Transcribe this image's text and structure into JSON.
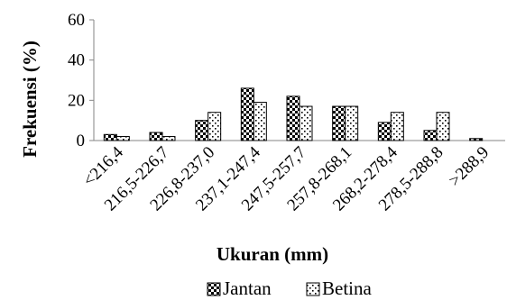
{
  "chart_data": {
    "type": "bar",
    "categories": [
      "<216,4",
      "216,5-226,7",
      "226,8-237,0",
      "237,1-247,4",
      "247,5-257,7",
      "257,8-268,1",
      "268,2-278,4",
      "278,5-288,8",
      ">288,9"
    ],
    "series": [
      {
        "name": "Jantan",
        "values": [
          3,
          4,
          10,
          26,
          22,
          17,
          9,
          5,
          1
        ],
        "pattern": "checker"
      },
      {
        "name": "Betina",
        "values": [
          2,
          2,
          14,
          19,
          17,
          17,
          14,
          14,
          0
        ],
        "pattern": "dotted"
      }
    ],
    "xlabel": "Ukuran (mm)",
    "ylabel": "Frekuensi (%)",
    "yticks": [
      0,
      20,
      40,
      60
    ],
    "ylim": [
      0,
      60
    ],
    "grid": false,
    "legend_position": "bottom",
    "colors": {
      "outline": "#000000",
      "fill": "#ffffff",
      "axis": "#868686"
    }
  }
}
